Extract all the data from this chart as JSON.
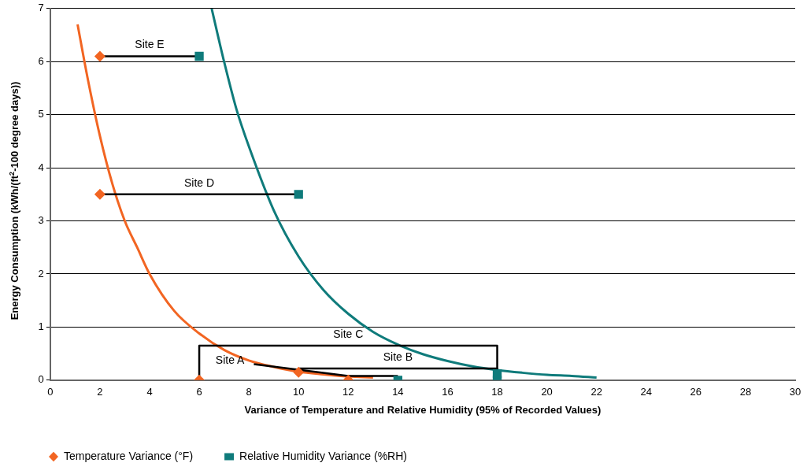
{
  "chart_data": {
    "type": "scatter",
    "xlabel": "Variance of Temperature and Relative Humidity (95% of Recorded Values)",
    "ylabel": "Energy Consumption (kWh/(ft$^{2}$-100 degree days))",
    "xlim": [
      0,
      30
    ],
    "xticks": [
      0,
      2,
      4,
      6,
      8,
      10,
      12,
      14,
      16,
      18,
      20,
      22,
      24,
      26,
      28,
      30
    ],
    "ylim": [
      0,
      7
    ],
    "yticks": [
      0,
      1,
      2,
      3,
      4,
      5,
      6,
      7
    ],
    "grid": "y",
    "legend": "bottom left",
    "series": [
      {
        "type": "line",
        "color": "#000000",
        "marker": "none",
        "x": [
          2,
          6
        ],
        "values": [
          6.1,
          6.1
        ]
      },
      {
        "type": "line",
        "color": "#000000",
        "marker": "none",
        "x": [
          2,
          10
        ],
        "values": [
          3.5,
          3.5
        ]
      },
      {
        "type": "line",
        "color": "#000000",
        "marker": "none",
        "x": [
          6,
          6,
          18,
          18
        ],
        "values": [
          0,
          0.65,
          0.65,
          0.1
        ]
      },
      {
        "type": "line",
        "color": "#000000",
        "marker": "none",
        "x": [
          10,
          18,
          18
        ],
        "values": [
          0.22,
          0.22,
          0.12
        ]
      },
      {
        "type": "line",
        "color": "#000000",
        "marker": "none",
        "x": [
          8.2,
          12,
          14
        ],
        "values": [
          0.3,
          0.08,
          0.08
        ]
      },
      {
        "type": "line",
        "color": "#f26522",
        "marker": "none",
        "x": [
          1.1,
          1.5,
          2,
          2.5,
          3,
          3.5,
          4,
          5,
          6,
          7,
          8,
          9,
          10,
          11,
          12,
          13
        ],
        "values": [
          6.7,
          5.7,
          4.6,
          3.7,
          3.0,
          2.5,
          2.0,
          1.3,
          0.88,
          0.57,
          0.37,
          0.25,
          0.16,
          0.11,
          0.07,
          0.05
        ]
      },
      {
        "type": "line",
        "color": "#0f7b7b",
        "marker": "none",
        "x": [
          6.5,
          7,
          7.5,
          8,
          9,
          10,
          11,
          12,
          13,
          14,
          15,
          16,
          17,
          18,
          19,
          20,
          21,
          22
        ],
        "values": [
          7.0,
          6.0,
          5.1,
          4.4,
          3.2,
          2.33,
          1.7,
          1.25,
          0.91,
          0.67,
          0.49,
          0.36,
          0.26,
          0.19,
          0.14,
          0.1,
          0.08,
          0.05
        ]
      },
      {
        "name": "Temperature Variance (°F)",
        "color": "#f26522",
        "marker": "diamond",
        "x": [
          2,
          2,
          6,
          10,
          12
        ],
        "values": [
          6.1,
          3.5,
          0,
          0.15,
          0
        ]
      },
      {
        "name": "Relative Humidity Variance (%RH)",
        "color": "#0f7b7b",
        "marker": "square",
        "x": [
          6,
          10,
          18,
          18,
          14
        ],
        "values": [
          6.1,
          3.5,
          0,
          0.12,
          0
        ]
      }
    ],
    "annotations": [
      "Site E",
      "Site D",
      "Site C",
      "Site B",
      "Site A"
    ]
  }
}
